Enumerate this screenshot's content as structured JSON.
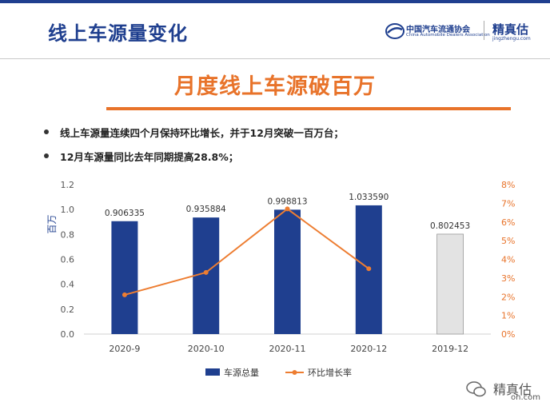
{
  "slide": {
    "title": "线上车源量变化",
    "headline": "月度线上车源破百万",
    "bullets": [
      "线上车源量连续四个月保持环比增长，并于12月突破一百万台；",
      "12月车源量同比去年同期提高28.8%；"
    ]
  },
  "logos": {
    "cada_cn": "中国汽车流通协会",
    "cada_en": "China Automobile Dealers Association",
    "jzg_name": "精真估",
    "jzg_url": "jingzhengu.com"
  },
  "watermark": {
    "name": "精真估",
    "url": "on.com"
  },
  "colors": {
    "primary": "#1f3f8f",
    "accent": "#e8732a",
    "bar": "#1f3f8f",
    "bar_prior_year": "#e3e3e3",
    "line": "#ed7d31"
  },
  "chart_data": {
    "type": "bar",
    "categories": [
      "2020-9",
      "2020-10",
      "2020-11",
      "2020-12",
      "2019-12"
    ],
    "ylabel": "百万",
    "ylim": [
      0,
      1.2
    ],
    "yticks": [
      "0.0",
      "0.2",
      "0.4",
      "0.6",
      "0.8",
      "1.0",
      "1.2"
    ],
    "y2lim": [
      0,
      0.08
    ],
    "y2ticks": [
      "0%",
      "1%",
      "2%",
      "3%",
      "4%",
      "5%",
      "6%",
      "7%",
      "8%"
    ],
    "grid": false,
    "legend_position": "bottom",
    "series": [
      {
        "name": "车源总量",
        "kind": "bar",
        "axis": "left",
        "values": [
          0.906335,
          0.935884,
          0.998813,
          1.03359,
          0.802453
        ],
        "labels": [
          "0.906335",
          "0.935884",
          "0.998813",
          "1.033590",
          "0.802453"
        ]
      },
      {
        "name": "环比增长率",
        "kind": "line",
        "axis": "right",
        "values": [
          0.021,
          0.033,
          0.067,
          0.035,
          null
        ]
      }
    ]
  }
}
